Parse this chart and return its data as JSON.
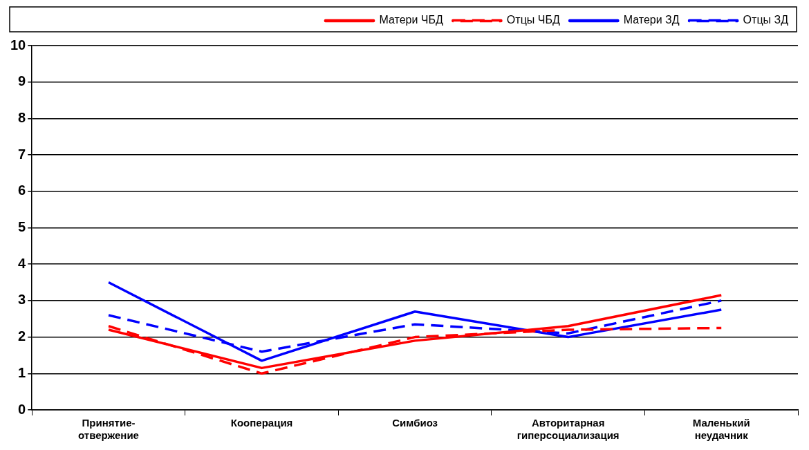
{
  "chart_data": {
    "type": "line",
    "categories": [
      "Принятие-отвержение",
      "Кооперация",
      "Симбиоз",
      "Авторитарная гиперсоциализация",
      "Маленький неудачник"
    ],
    "series": [
      {
        "name": "Матери ЧБД",
        "color": "#ff0000",
        "line_style": "solid",
        "values": [
          2.2,
          1.15,
          1.9,
          2.3,
          3.15
        ]
      },
      {
        "name": "Отцы ЧБД",
        "color": "#ff0000",
        "line_style": "dashed",
        "values": [
          2.3,
          1.0,
          2.0,
          2.2,
          2.25
        ]
      },
      {
        "name": "Матери ЗД",
        "color": "#0000ff",
        "line_style": "solid",
        "values": [
          3.5,
          1.35,
          2.7,
          2.0,
          2.75
        ]
      },
      {
        "name": "Отцы ЗД",
        "color": "#0000ff",
        "line_style": "dashed",
        "values": [
          2.6,
          1.6,
          2.35,
          2.1,
          3.0
        ]
      }
    ],
    "ylim": [
      0,
      10
    ],
    "yticks": [
      0,
      1,
      2,
      3,
      4,
      5,
      6,
      7,
      8,
      9,
      10
    ],
    "grid": "y",
    "legend": "top right",
    "marker": "none"
  }
}
